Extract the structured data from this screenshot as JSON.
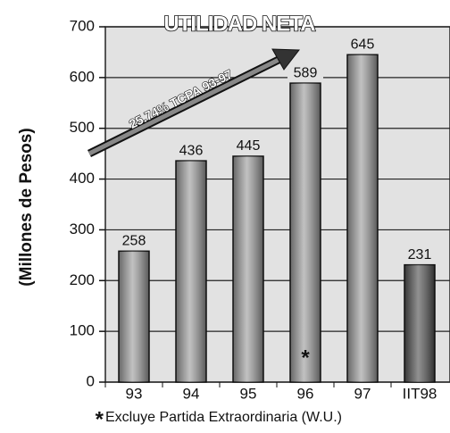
{
  "chart_data": {
    "type": "bar",
    "title": "UTILIDAD NETA",
    "y_axis_label": "(Millones de Pesos)",
    "categories": [
      "93",
      "94",
      "95",
      "96",
      "97",
      "IIT98"
    ],
    "values": [
      258,
      436,
      445,
      589,
      645,
      231
    ],
    "colors": [
      "#a0a0a0",
      "#a0a0a0",
      "#a0a0a0",
      "#a0a0a0",
      "#a0a0a0",
      "#555555"
    ],
    "ylim": [
      0,
      700
    ],
    "yticks": [
      0,
      100,
      200,
      300,
      400,
      500,
      600,
      700
    ],
    "grid": true,
    "annotation": "25.74% TCPA 93-97",
    "footnote_marker": "*",
    "footnote": "Excluye Partida Extraordinaria (W.U.)"
  }
}
